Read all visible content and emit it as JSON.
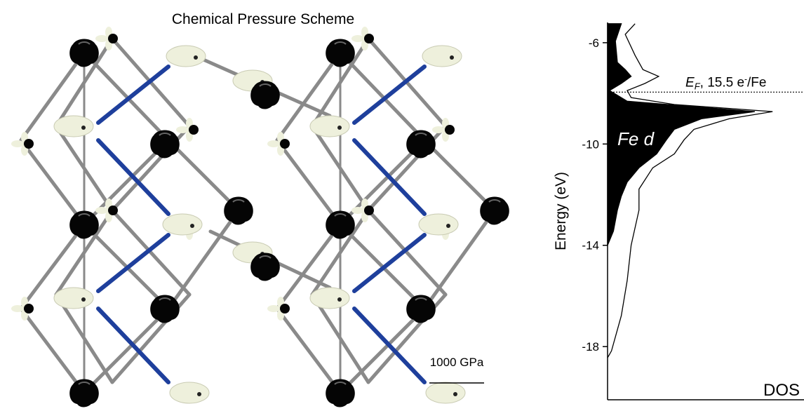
{
  "header": {
    "title": "Chemical Pressure Scheme"
  },
  "scale_bar": {
    "label": "1000 GPa"
  },
  "chart_data": {
    "type": "line",
    "y_label": "Energy (eV)",
    "x_label": "DOS",
    "ylim": [
      -20.1,
      -5.2
    ],
    "yticks": [
      -6,
      -10,
      -14,
      -18
    ],
    "xlim": [
      0,
      1
    ],
    "fermi": {
      "energy": -7.95,
      "symbol": "E",
      "subscript": "F",
      "text": ", 15.5 e",
      "superscript": "-",
      "suffix": "/Fe"
    },
    "annotation": "Fe d",
    "series": [
      {
        "name": "Fe d",
        "color": "#000000",
        "filled": true,
        "energy": [
          -5.25,
          -5.94,
          -6.78,
          -7.06,
          -7.33,
          -7.61,
          -7.89,
          -8.31,
          -8.72,
          -9.0,
          -9.42,
          -9.83,
          -10.39,
          -10.94,
          -11.5,
          -12.06,
          -12.61,
          -13.44,
          -14.0
        ],
        "values": [
          0.07,
          0.04,
          0.05,
          0.09,
          0.12,
          0.07,
          0.01,
          0.1,
          0.75,
          0.48,
          0.34,
          0.3,
          0.25,
          0.16,
          0.1,
          0.07,
          0.05,
          0.03,
          0
        ]
      },
      {
        "name": "DOS",
        "color": "#000000",
        "filled": false,
        "energy": [
          -5.25,
          -5.67,
          -6.5,
          -7.06,
          -7.33,
          -7.61,
          -7.89,
          -8.17,
          -8.44,
          -8.72,
          -9.0,
          -9.42,
          -9.83,
          -10.39,
          -10.94,
          -11.78,
          -12.61,
          -14.0,
          -15.39,
          -16.78,
          -18.17,
          -18.44
        ],
        "values": [
          0.14,
          0.09,
          0.14,
          0.18,
          0.26,
          0.19,
          0.1,
          0.12,
          0.34,
          0.84,
          0.62,
          0.44,
          0.39,
          0.34,
          0.23,
          0.16,
          0.16,
          0.12,
          0.1,
          0.07,
          0.02,
          0
        ]
      }
    ]
  }
}
